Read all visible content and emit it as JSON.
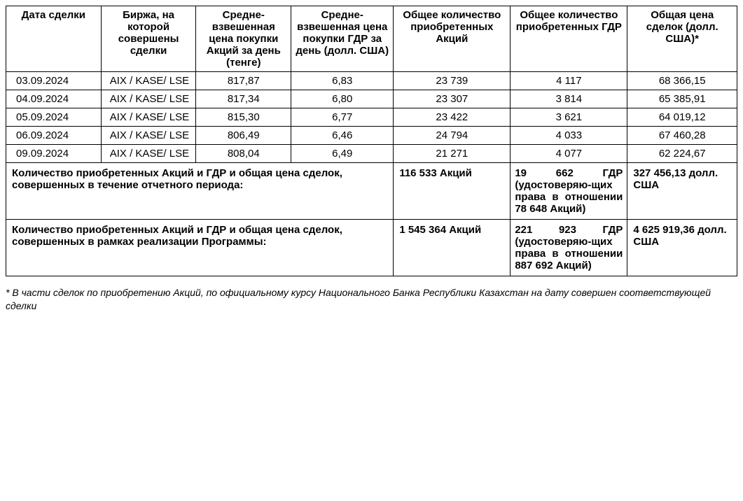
{
  "table": {
    "columns": [
      "Дата сделки",
      "Биржа, на которой совершены сделки",
      "Средне-взвешенная цена покупки Акций за день (тенге)",
      "Средне-взвешенная цена покупки ГДР за день (долл. США)",
      "Общее количество приобретенных Акций",
      "Общее количество приобретенных ГДР",
      "Общая цена сделок (долл. США)*"
    ],
    "rows": [
      {
        "date": "03.09.2024",
        "exchange": "AIX / KASE/ LSE",
        "price_kzt": "817,87",
        "price_usd": "6,83",
        "shares": "23 739",
        "gdr": "4 117",
        "total": "68 366,15"
      },
      {
        "date": "04.09.2024",
        "exchange": "AIX / KASE/ LSE",
        "price_kzt": "817,34",
        "price_usd": "6,80",
        "shares": "23 307",
        "gdr": "3 814",
        "total": "65 385,91"
      },
      {
        "date": "05.09.2024",
        "exchange": "AIX / KASE/ LSE",
        "price_kzt": "815,30",
        "price_usd": "6,77",
        "shares": "23 422",
        "gdr": "3 621",
        "total": "64 019,12"
      },
      {
        "date": "06.09.2024",
        "exchange": "AIX / KASE/ LSE",
        "price_kzt": "806,49",
        "price_usd": "6,46",
        "shares": "24 794",
        "gdr": "4 033",
        "total": "67 460,28"
      },
      {
        "date": "09.09.2024",
        "exchange": "AIX / KASE/ LSE",
        "price_kzt": "808,04",
        "price_usd": "6,49",
        "shares": "21 271",
        "gdr": "4 077",
        "total": "62 224,67"
      }
    ],
    "summary1": {
      "label": "Количество приобретенных Акций и ГДР и общая цена сделок, совершенных в течение отчетного периода:",
      "shares": "116 533 Акций",
      "gdr": "19 662 ГДР (удостоверяю-щих права в отношении 78 648 Акций)",
      "total": "327 456,13 долл. США"
    },
    "summary2": {
      "label": "Количество приобретенных Акций и ГДР и общая цена сделок, совершенных в рамках реализации Программы:",
      "shares": "1 545 364 Акций",
      "gdr": "221 923 ГДР (удостоверяю-щих права в отношении 887 692 Акций)",
      "total": "4 625 919,36 долл. США"
    },
    "styling": {
      "border_color": "#000000",
      "background_color": "#ffffff",
      "text_color": "#000000",
      "header_fontweight": "bold",
      "body_fontsize": 15,
      "footnote_fontsize": 14
    }
  },
  "footnote": "* В части сделок по приобретению Акций, по официальному курсу Национального Банка Республики Казахстан на дату совершен соответствующей сделки"
}
